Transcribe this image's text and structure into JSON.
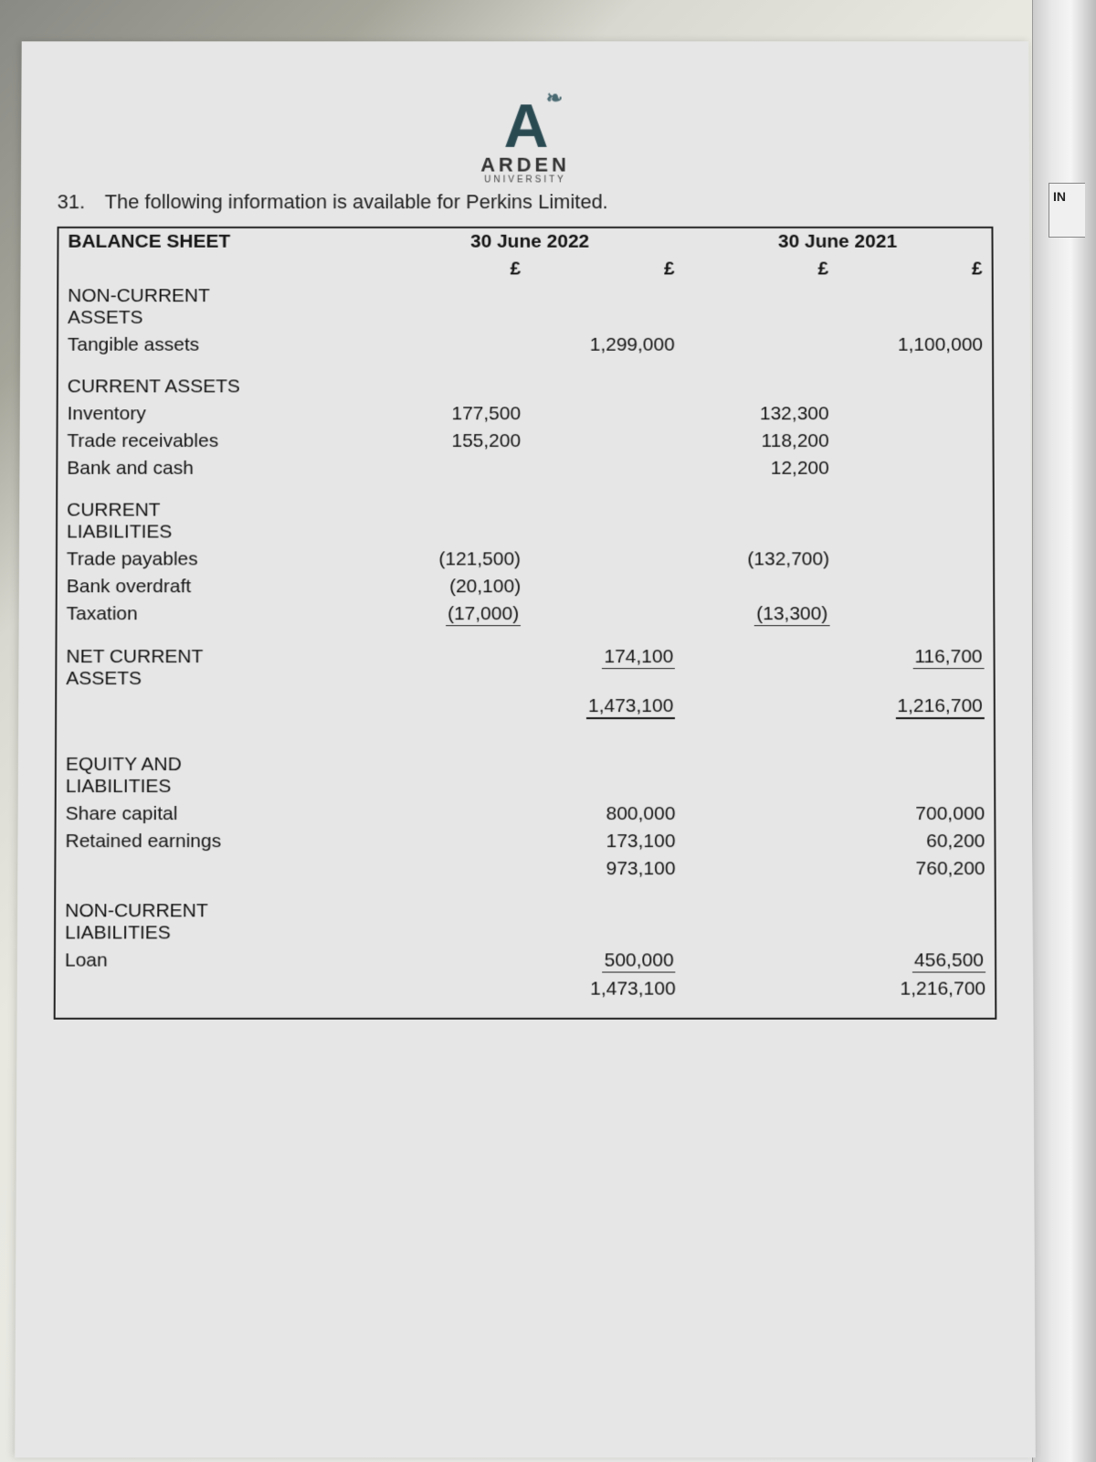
{
  "logo": {
    "name": "ARDEN",
    "sub": "UNIVERSITY"
  },
  "question": {
    "number": "31.",
    "text": "The following information is available for Perkins Limited."
  },
  "tab_text": "IN",
  "table": {
    "title": "BALANCE SHEET",
    "periods": {
      "p1": "30 June 2022",
      "p2": "30 June 2021"
    },
    "currency": "£",
    "sections": {
      "nca_heading": "NON-CURRENT ASSETS",
      "tangible": {
        "label": "Tangible assets",
        "p1": "1,299,000",
        "p2": "1,100,000"
      },
      "ca_heading": "CURRENT ASSETS",
      "inventory": {
        "label": "Inventory",
        "p1": "177,500",
        "p2": "132,300"
      },
      "receivables": {
        "label": "Trade receivables",
        "p1": "155,200",
        "p2": "118,200"
      },
      "bank_cash": {
        "label": "Bank and cash",
        "p1": "",
        "p2": "12,200"
      },
      "cl_heading": "CURRENT LIABILITIES",
      "payables": {
        "label": "Trade payables",
        "p1": "(121,500)",
        "p2": "(132,700)"
      },
      "overdraft": {
        "label": "Bank overdraft",
        "p1": "(20,100)",
        "p2": ""
      },
      "taxation": {
        "label": "Taxation",
        "p1": "(17,000)",
        "p2": "(13,300)"
      },
      "net_ca": {
        "label": "NET CURRENT ASSETS",
        "p1": "174,100",
        "p2": "116,700"
      },
      "total_net": {
        "p1": "1,473,100",
        "p2": "1,216,700"
      },
      "eql_heading": "EQUITY AND LIABILITIES",
      "share_cap": {
        "label": "Share capital",
        "p1": "800,000",
        "p2": "700,000"
      },
      "retained": {
        "label": "Retained earnings",
        "p1": "173,100",
        "p2": "60,200"
      },
      "equity_total": {
        "p1": "973,100",
        "p2": "760,200"
      },
      "ncl_heading": "NON-CURRENT LIABILITIES",
      "loan": {
        "label": "Loan",
        "p1": "500,000",
        "p2": "456,500"
      },
      "grand_total": {
        "p1": "1,473,100",
        "p2": "1,216,700"
      }
    }
  },
  "style": {
    "font_size_body": 21,
    "font_size_heading": 22,
    "border_color": "#222222",
    "text_color": "#151515",
    "page_bg": "#e6e6e6",
    "logo_color": "#2a4a52"
  }
}
